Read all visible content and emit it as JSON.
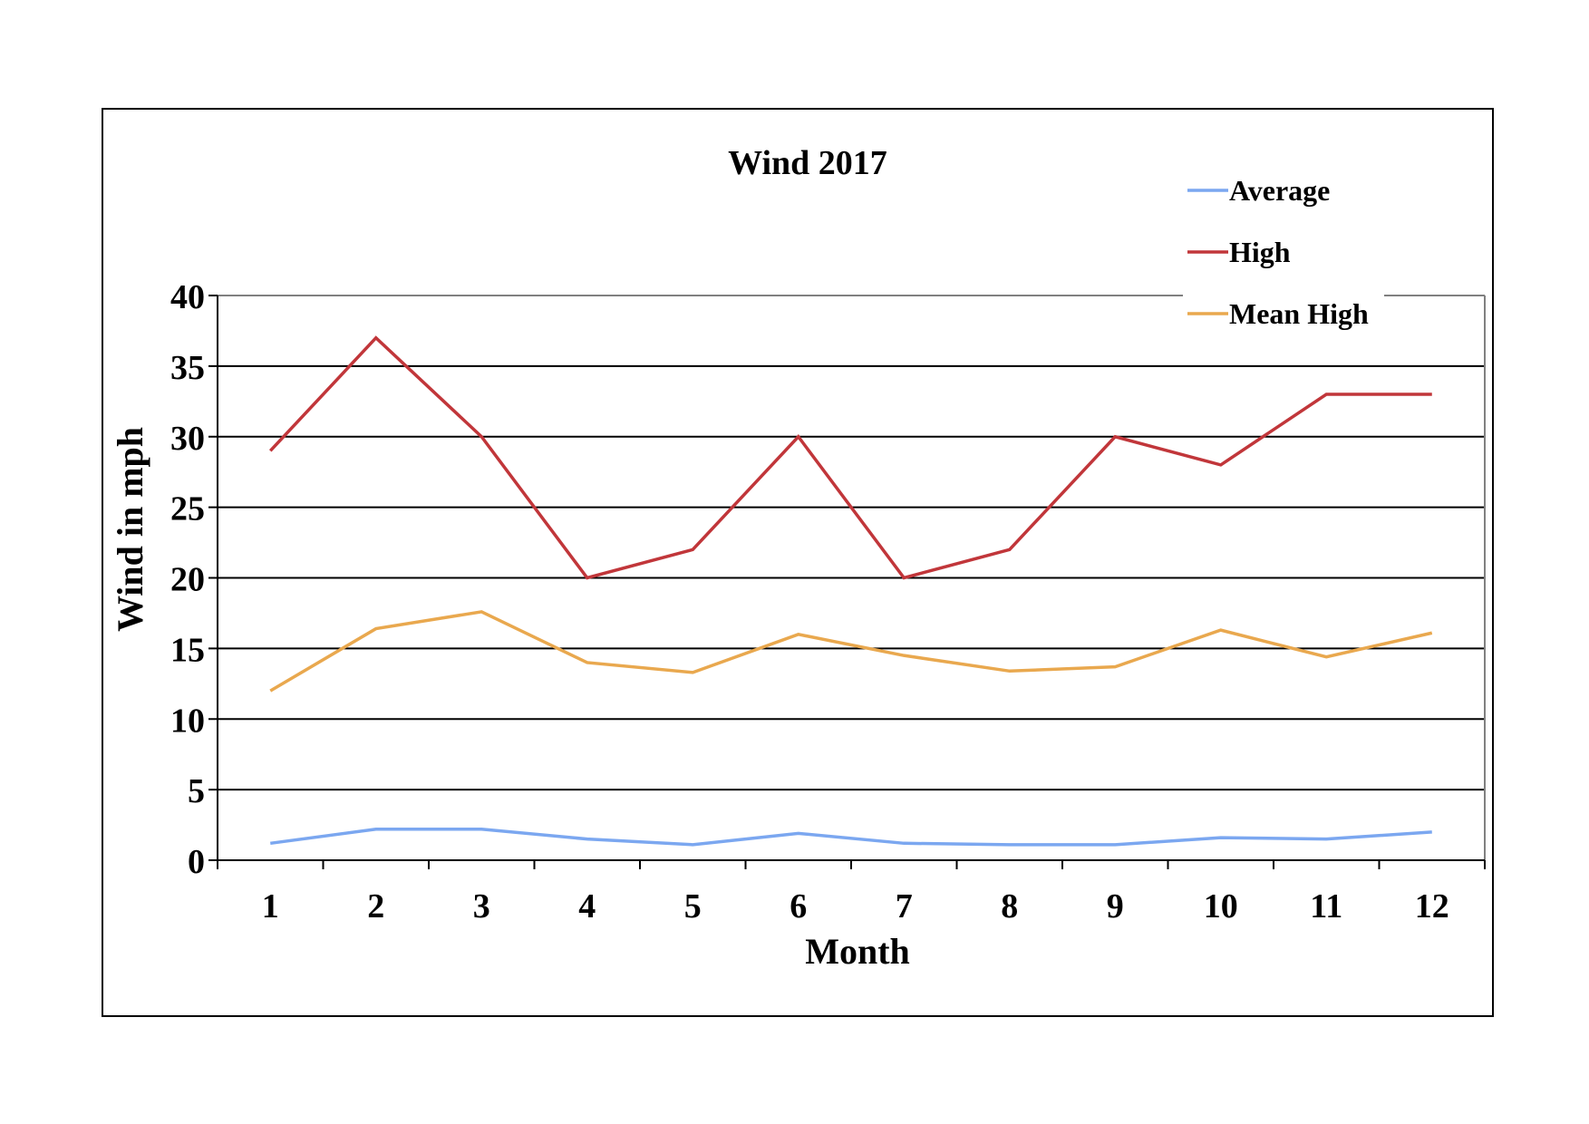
{
  "chart_data": {
    "type": "line",
    "title": "Wind 2017",
    "xlabel": "Month",
    "ylabel": "Wind in mph",
    "categories": [
      "1",
      "2",
      "3",
      "4",
      "5",
      "6",
      "7",
      "8",
      "9",
      "10",
      "11",
      "12"
    ],
    "yticks": [
      "0",
      "5",
      "10",
      "15",
      "20",
      "25",
      "30",
      "35",
      "40"
    ],
    "ylim": [
      0,
      40
    ],
    "grid": true,
    "legend_position": "top-right",
    "series": [
      {
        "name": "Average",
        "color": "#7ba7f0",
        "values": [
          1.2,
          2.2,
          2.2,
          1.5,
          1.1,
          1.9,
          1.2,
          1.1,
          1.1,
          1.6,
          1.5,
          2.0
        ]
      },
      {
        "name": "High",
        "color": "#c1363a",
        "values": [
          29,
          37,
          30,
          20,
          22,
          30,
          20,
          22,
          30,
          28,
          33,
          33
        ]
      },
      {
        "name": "Mean High",
        "color": "#e9a84e",
        "values": [
          12,
          16.4,
          17.6,
          14,
          13.3,
          16,
          14.5,
          13.4,
          13.7,
          16.3,
          14.4,
          16.1
        ]
      }
    ]
  }
}
